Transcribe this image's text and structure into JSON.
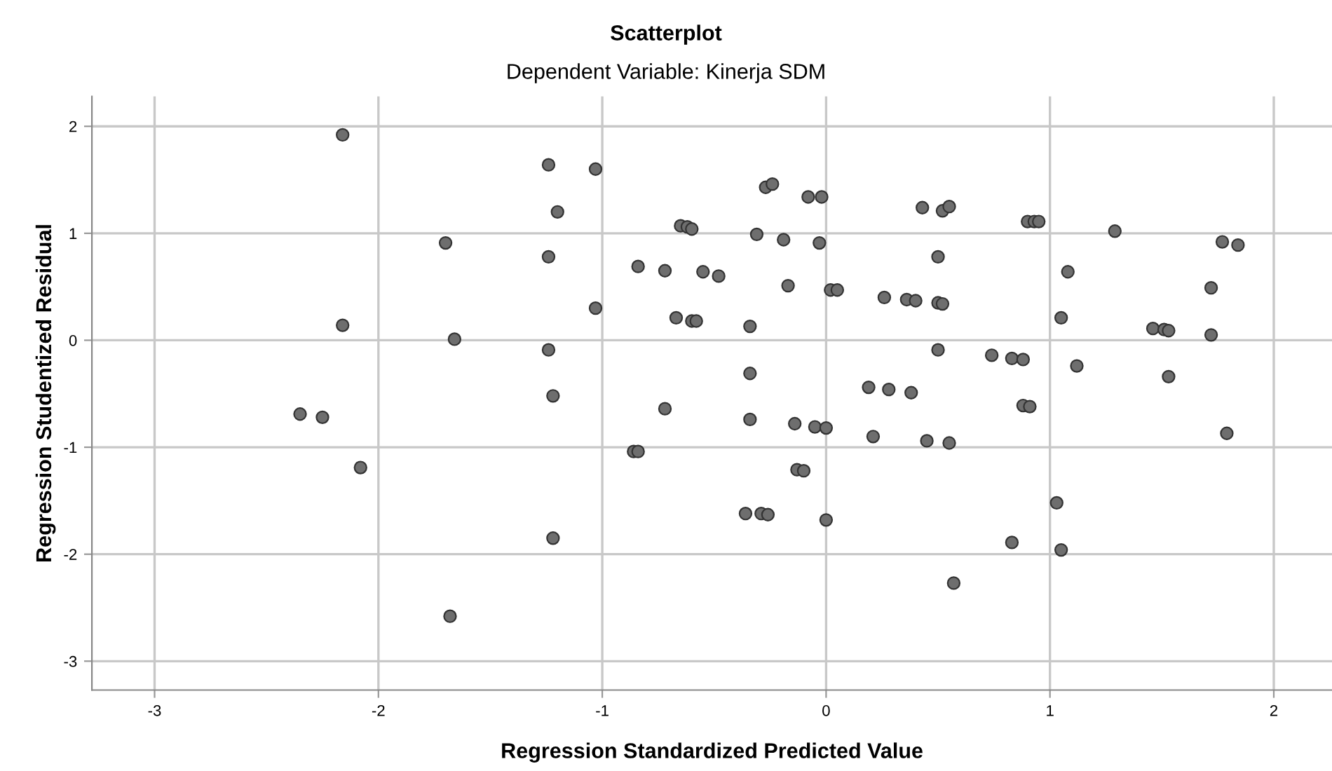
{
  "chart_data": {
    "type": "scatter",
    "title": "Scatterplot",
    "subtitle": "Dependent Variable: Kinerja SDM",
    "xlabel": "Regression Standardized Predicted Value",
    "ylabel": "Regression Studentized Residual",
    "xlim": [
      -3.28,
      2.26
    ],
    "ylim": [
      -3.27,
      2.28
    ],
    "xticks": [
      {
        "value": -3,
        "label": "-3"
      },
      {
        "value": -2,
        "label": "-2"
      },
      {
        "value": -1,
        "label": "-1"
      },
      0,
      1,
      2
    ],
    "yticks": [
      {
        "value": -3,
        "label": "-3"
      },
      {
        "value": -2,
        "label": "-2"
      },
      {
        "value": -1,
        "label": "-1"
      },
      0,
      1,
      2
    ],
    "grid": true,
    "marker": "circle",
    "series": [
      {
        "color": "#6e6e6e",
        "x": [
          -2.16,
          -1.7,
          -2.16,
          -1.66,
          -2.35,
          -2.25,
          -2.08,
          -1.68,
          -1.24,
          -1.03,
          -1.2,
          -1.24,
          -1.03,
          -1.24,
          -1.22,
          -1.22,
          -0.86,
          -0.84,
          -0.84,
          -0.72,
          -0.72,
          -0.67,
          -0.6,
          -0.58,
          -0.65,
          -0.62,
          -0.6,
          -0.55,
          -0.48,
          -0.34,
          -0.34,
          -0.34,
          -0.31,
          -0.27,
          -0.24,
          -0.36,
          -0.29,
          -0.26,
          -0.19,
          -0.17,
          -0.14,
          -0.13,
          -0.1,
          -0.08,
          -0.02,
          -0.03,
          -0.05,
          0.0,
          0.0,
          0.02,
          0.05,
          0.19,
          0.28,
          0.21,
          0.26,
          0.36,
          0.4,
          0.38,
          0.43,
          0.52,
          0.55,
          0.5,
          0.5,
          0.52,
          0.5,
          0.45,
          0.55,
          0.57,
          0.74,
          0.83,
          0.88,
          0.88,
          0.91,
          0.9,
          0.93,
          0.95,
          0.83,
          1.03,
          1.05,
          1.05,
          1.08,
          1.12,
          1.29,
          1.46,
          1.51,
          1.53,
          1.53,
          1.72,
          1.72,
          1.77,
          1.84,
          1.79
        ],
        "values": [
          1.92,
          0.91,
          0.14,
          0.01,
          -0.69,
          -0.72,
          -1.19,
          -2.58,
          1.64,
          1.6,
          1.2,
          0.78,
          0.3,
          -0.09,
          -0.52,
          -1.85,
          -1.04,
          -1.04,
          0.69,
          0.65,
          -0.64,
          0.21,
          0.18,
          0.18,
          1.07,
          1.06,
          1.04,
          0.64,
          0.6,
          0.13,
          -0.31,
          -0.74,
          0.99,
          1.43,
          1.46,
          -1.62,
          -1.62,
          -1.63,
          0.94,
          0.51,
          -0.78,
          -1.21,
          -1.22,
          1.34,
          1.34,
          0.91,
          -0.81,
          -0.82,
          -1.68,
          0.47,
          0.47,
          -0.44,
          -0.46,
          -0.9,
          0.4,
          0.38,
          0.37,
          -0.49,
          1.24,
          1.21,
          1.25,
          0.78,
          0.35,
          0.34,
          -0.09,
          -0.94,
          -0.96,
          -2.27,
          -0.14,
          -0.17,
          -0.18,
          -0.61,
          -0.62,
          1.11,
          1.11,
          1.11,
          -1.89,
          -1.52,
          -1.96,
          0.21,
          0.64,
          -0.24,
          1.02,
          0.11,
          0.1,
          0.09,
          -0.34,
          0.49,
          0.05,
          0.92,
          0.89,
          -0.87
        ]
      }
    ]
  }
}
